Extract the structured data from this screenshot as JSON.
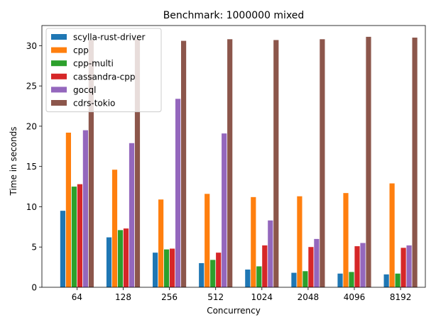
{
  "chart_data": {
    "type": "bar",
    "title": "Benchmark: 1000000 mixed",
    "xlabel": "Concurrency",
    "ylabel": "Time in seconds",
    "ylim": [
      0,
      32.5
    ],
    "yticks": [
      0,
      5,
      10,
      15,
      20,
      25,
      30
    ],
    "categories": [
      "64",
      "128",
      "256",
      "512",
      "1024",
      "2048",
      "4096",
      "8192"
    ],
    "legend_position": "top-left",
    "grid": false,
    "series": [
      {
        "name": "scylla-rust-driver",
        "color": "#1f77b4",
        "values": [
          9.5,
          6.2,
          4.3,
          3.0,
          2.2,
          1.8,
          1.7,
          1.6
        ]
      },
      {
        "name": "cpp",
        "color": "#ff7f0e",
        "values": [
          19.2,
          14.6,
          10.9,
          11.6,
          11.2,
          11.3,
          11.7,
          12.9
        ]
      },
      {
        "name": "cpp-multi",
        "color": "#2ca02c",
        "values": [
          12.5,
          7.1,
          4.7,
          3.4,
          2.6,
          2.0,
          1.9,
          1.7
        ]
      },
      {
        "name": "cassandra-cpp",
        "color": "#d62728",
        "values": [
          12.8,
          7.3,
          4.8,
          4.3,
          5.2,
          5.0,
          5.1,
          4.9
        ]
      },
      {
        "name": "gocql",
        "color": "#9467bd",
        "values": [
          19.5,
          17.9,
          23.4,
          19.1,
          8.3,
          6.0,
          5.5,
          5.2
        ]
      },
      {
        "name": "cdrs-tokio",
        "color": "#8c564b",
        "values": [
          30.7,
          30.8,
          30.6,
          30.8,
          30.7,
          30.8,
          31.1,
          31.0
        ]
      }
    ]
  }
}
